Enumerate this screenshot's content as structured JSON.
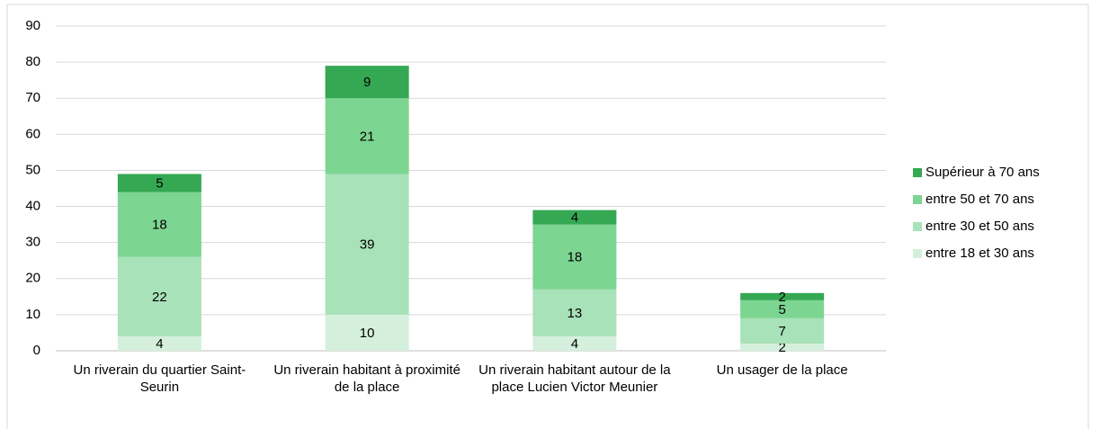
{
  "chart_data": {
    "type": "stacked_bar",
    "categories": [
      "Un riverain du quartier Saint-Seurin",
      "Un riverain habitant à proximité de la place",
      "Un riverain habitant autour de la place Lucien Victor Meunier",
      "Un usager de la place"
    ],
    "series": [
      {
        "name": "entre 18 et 30 ans",
        "color": "#d4f0dc",
        "values": [
          4,
          10,
          4,
          2
        ]
      },
      {
        "name": "entre 30 et 50 ans",
        "color": "#a8e2b8",
        "values": [
          22,
          39,
          13,
          7
        ]
      },
      {
        "name": "entre 50 et 70 ans",
        "color": "#7dd592",
        "values": [
          18,
          21,
          18,
          5
        ]
      },
      {
        "name": "Supérieur à 70 ans",
        "color": "#35a853",
        "values": [
          5,
          9,
          4,
          2
        ]
      }
    ],
    "ylim": [
      0,
      90
    ],
    "yticks": [
      0,
      10,
      20,
      30,
      40,
      50,
      60,
      70,
      80,
      90
    ],
    "grid": true,
    "legend": "right"
  }
}
